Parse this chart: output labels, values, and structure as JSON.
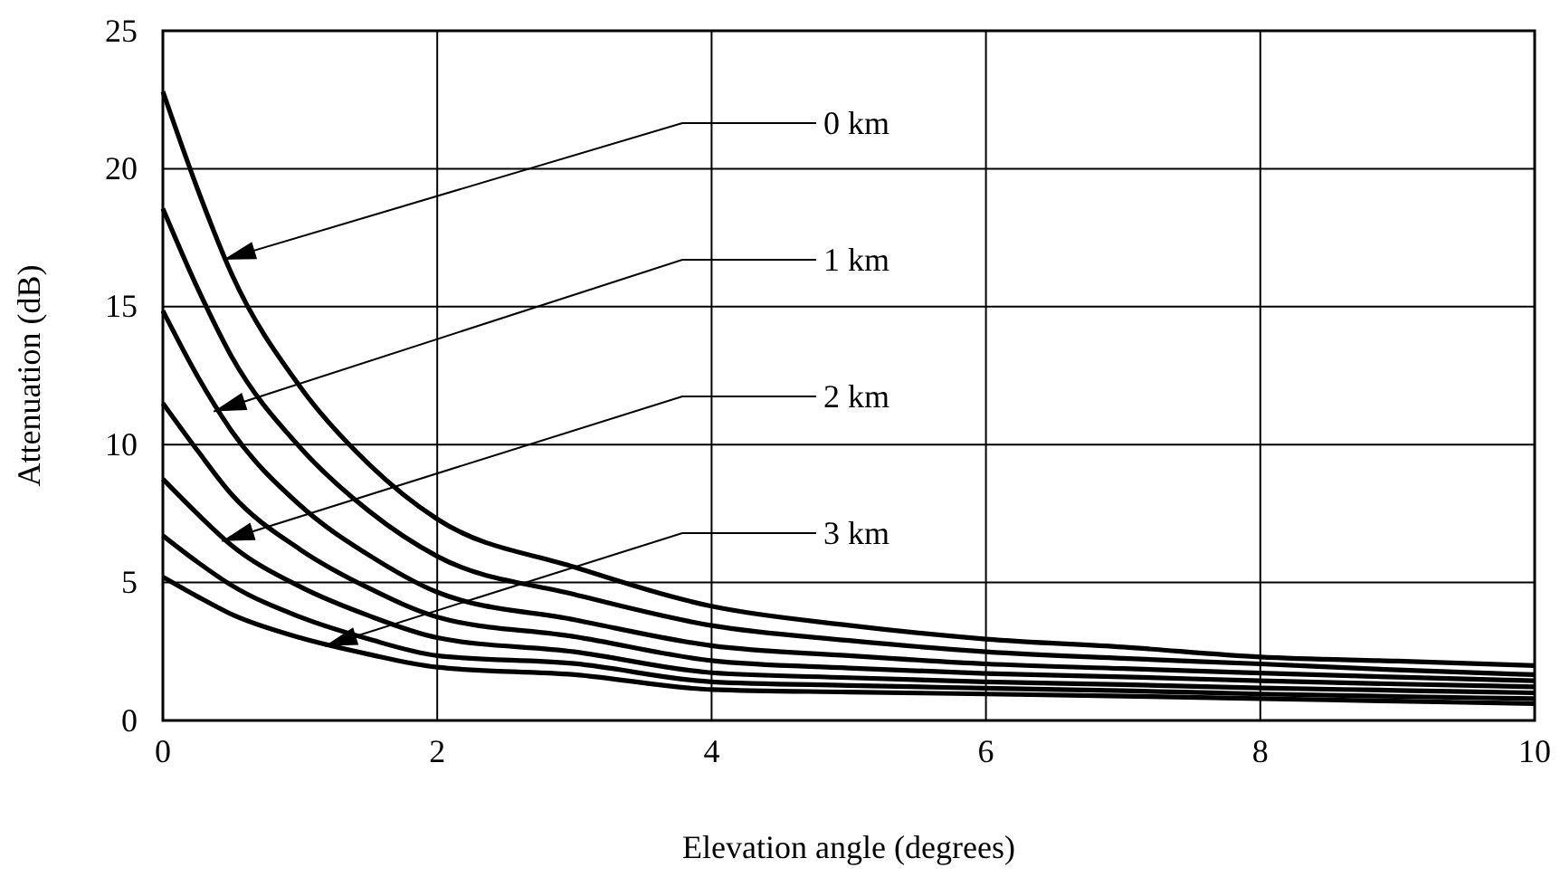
{
  "chart_data": {
    "type": "line",
    "xlabel": "Elevation angle (degrees)",
    "ylabel": "Attenuation (dB)",
    "x": [
      0,
      0.25,
      0.5,
      1,
      1.5,
      2,
      3,
      4,
      5,
      6,
      7,
      8,
      9,
      10
    ],
    "series": [
      {
        "color": "#000000",
        "values": [
          22.8,
          19.3,
          16.2,
          12.1,
          9.3,
          7.3,
          5.56,
          4.14,
          3.45,
          2.95,
          2.66,
          2.3,
          2.15,
          1.99
        ]
      },
      {
        "color": "#000000",
        "values": [
          18.55,
          15.7,
          13.2,
          9.9,
          7.6,
          5.95,
          4.57,
          3.44,
          2.9,
          2.49,
          2.25,
          2.05,
          1.83,
          1.66
        ]
      },
      {
        "color": "#000000",
        "values": [
          14.85,
          12.5,
          10.5,
          7.8,
          6.0,
          4.65,
          3.65,
          2.71,
          2.35,
          2.05,
          1.88,
          1.72,
          1.57,
          1.44
        ]
      },
      {
        "color": "#000000",
        "values": [
          11.5,
          9.8,
          8.2,
          6.2,
          4.8,
          3.75,
          3.04,
          2.17,
          1.9,
          1.7,
          1.58,
          1.44,
          1.32,
          1.22
        ]
      },
      {
        "color": "#000000",
        "values": [
          8.75,
          7.5,
          6.35,
          4.85,
          3.8,
          3.0,
          2.49,
          1.73,
          1.55,
          1.4,
          1.3,
          1.18,
          1.09,
          1.0
        ]
      },
      {
        "color": "#000000",
        "values": [
          6.7,
          5.75,
          4.9,
          3.75,
          2.95,
          2.35,
          2.06,
          1.4,
          1.27,
          1.17,
          1.08,
          0.96,
          0.87,
          0.79
        ]
      },
      {
        "color": "#000000",
        "values": [
          5.2,
          4.5,
          3.85,
          3.0,
          2.4,
          1.93,
          1.66,
          1.12,
          1.03,
          0.96,
          0.88,
          0.79,
          0.7,
          0.61
        ]
      }
    ],
    "annotations": [
      {
        "text": "0 km",
        "x": 0.44,
        "y": 16.7
      },
      {
        "text": "1 km",
        "x": 0.37,
        "y": 11.2
      },
      {
        "text": "2 km",
        "x": 0.43,
        "y": 6.5
      },
      {
        "text": "3 km",
        "x": 1.18,
        "y": 2.7
      }
    ],
    "xlim": [
      0,
      10
    ],
    "ylim": [
      0,
      25
    ],
    "xticks": [
      0,
      2,
      4,
      6,
      8,
      10
    ],
    "yticks": [
      0,
      5,
      10,
      15,
      20,
      25
    ],
    "grid": true,
    "marker": "none",
    "line_style": "solid"
  }
}
